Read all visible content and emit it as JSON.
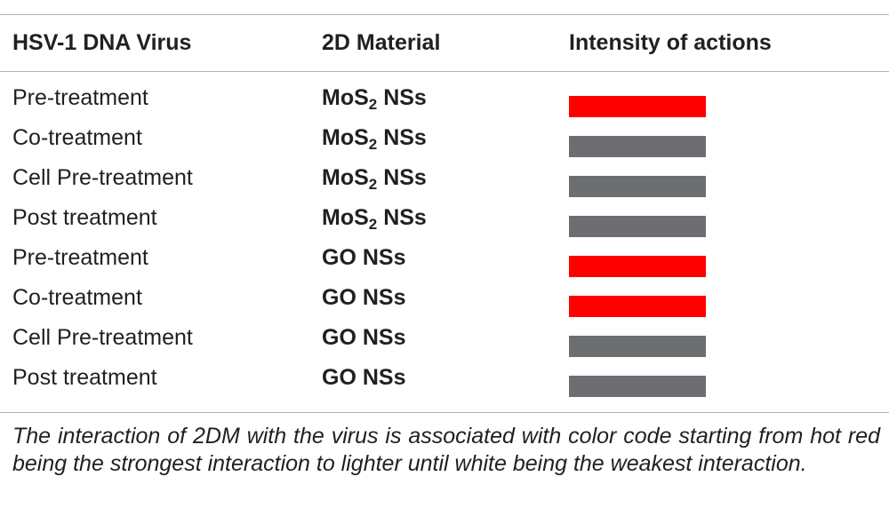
{
  "table": {
    "headers": [
      "HSV-1 DNA Virus",
      "2D Material",
      "Intensity of actions"
    ],
    "rows": [
      {
        "virus": "Pre-treatment",
        "material_base": "MoS",
        "material_sub": "2",
        "material_suffix": " NSs",
        "intensity": "strong",
        "color": "#ff0000"
      },
      {
        "virus": "Co-treatment",
        "material_base": "MoS",
        "material_sub": "2",
        "material_suffix": " NSs",
        "intensity": "weak",
        "color": "#6d6e71"
      },
      {
        "virus": "Cell Pre-treatment",
        "material_base": "MoS",
        "material_sub": "2",
        "material_suffix": " NSs",
        "intensity": "weak",
        "color": "#6d6e71"
      },
      {
        "virus": "Post treatment",
        "material_base": "MoS",
        "material_sub": "2",
        "material_suffix": " NSs",
        "intensity": "weak",
        "color": "#6d6e71"
      },
      {
        "virus": "Pre-treatment",
        "material_base": "GO NSs",
        "material_sub": "",
        "material_suffix": "",
        "intensity": "strong",
        "color": "#ff0000"
      },
      {
        "virus": "Co-treatment",
        "material_base": "GO NSs",
        "material_sub": "",
        "material_suffix": "",
        "intensity": "strong",
        "color": "#ff0000"
      },
      {
        "virus": "Cell Pre-treatment",
        "material_base": "GO NSs",
        "material_sub": "",
        "material_suffix": "",
        "intensity": "weak",
        "color": "#6d6e71"
      },
      {
        "virus": "Post treatment",
        "material_base": "GO NSs",
        "material_sub": "",
        "material_suffix": "",
        "intensity": "weak",
        "color": "#6d6e71"
      }
    ]
  },
  "caption": "The interaction of 2DM with the virus is associated with color code starting from hot red being the strongest interaction to lighter until white being the weakest interaction.",
  "colors": {
    "strong": "#ff0000",
    "weak": "#6d6e71",
    "rule": "#b3b3b3"
  }
}
